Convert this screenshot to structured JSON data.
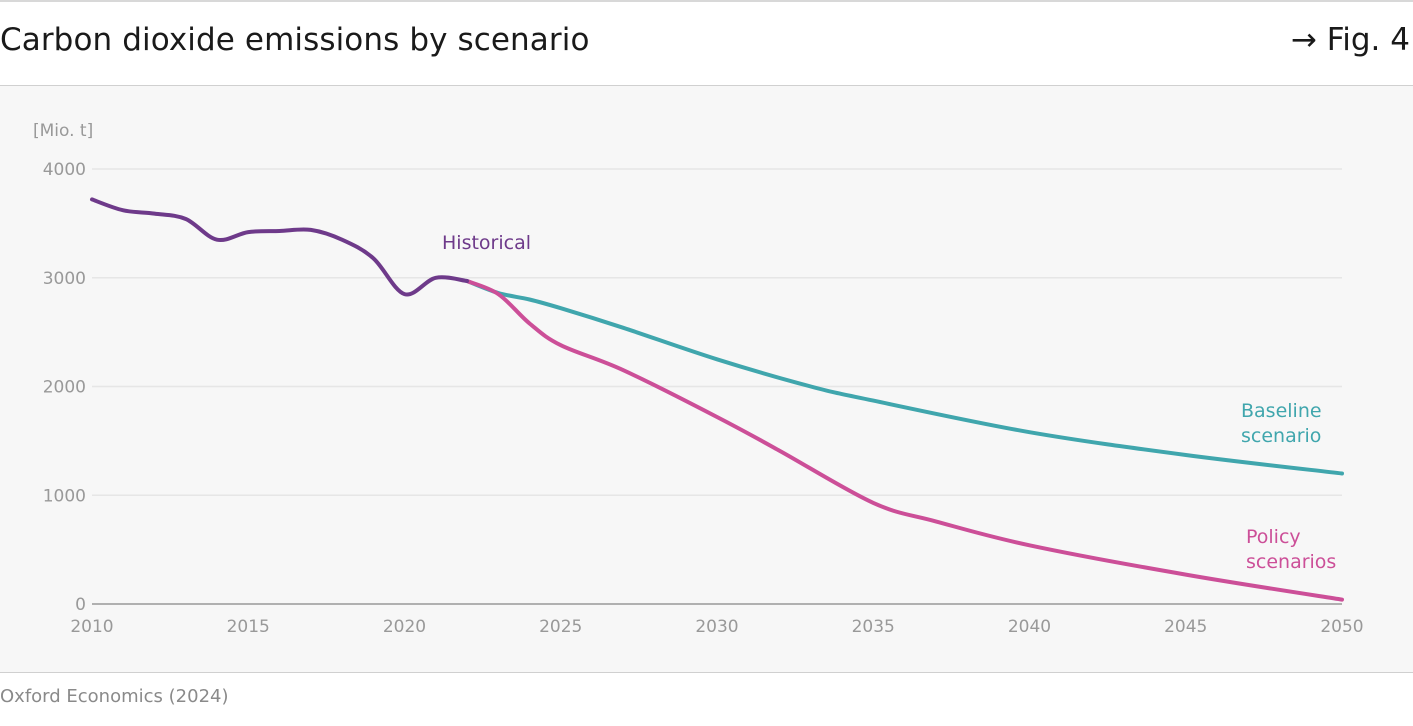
{
  "header": {
    "title": "Carbon dioxide emissions by scenario",
    "fig_ref": "→ Fig. 4"
  },
  "footer": {
    "source": "Oxford Economics (2024)"
  },
  "colors": {
    "historical": "#6e3a8a",
    "baseline": "#40a6ad",
    "policy": "#cc4f98",
    "axis": "#999999",
    "grid": "#e6e6e6",
    "background": "#f7f7f7"
  },
  "chart_data": {
    "type": "line",
    "unit_label": "[Mio. t]",
    "xlim": [
      2010,
      2050
    ],
    "ylim": [
      0,
      4000
    ],
    "x_ticks": [
      2010,
      2015,
      2020,
      2025,
      2030,
      2035,
      2040,
      2045,
      2050
    ],
    "y_ticks": [
      0,
      1000,
      2000,
      3000,
      4000
    ],
    "grid": true,
    "series": [
      {
        "key": "historical",
        "name": "Historical",
        "points": [
          [
            2010,
            3720
          ],
          [
            2011,
            3620
          ],
          [
            2012,
            3590
          ],
          [
            2013,
            3540
          ],
          [
            2014,
            3350
          ],
          [
            2015,
            3420
          ],
          [
            2016,
            3430
          ],
          [
            2017,
            3440
          ],
          [
            2018,
            3350
          ],
          [
            2019,
            3180
          ],
          [
            2020,
            2850
          ],
          [
            2021,
            3000
          ],
          [
            2022,
            2970
          ]
        ]
      },
      {
        "key": "baseline",
        "name": "Baseline scenario",
        "label_lines": [
          "Baseline",
          "scenario"
        ],
        "points": [
          [
            2022,
            2970
          ],
          [
            2023,
            2860
          ],
          [
            2024,
            2800
          ],
          [
            2025,
            2720
          ],
          [
            2027,
            2540
          ],
          [
            2030,
            2250
          ],
          [
            2033,
            2000
          ],
          [
            2035,
            1870
          ],
          [
            2040,
            1580
          ],
          [
            2045,
            1370
          ],
          [
            2050,
            1200
          ]
        ]
      },
      {
        "key": "policy",
        "name": "Policy scenarios",
        "label_lines": [
          "Policy",
          "scenarios"
        ],
        "points": [
          [
            2022,
            2970
          ],
          [
            2023,
            2850
          ],
          [
            2024,
            2580
          ],
          [
            2025,
            2380
          ],
          [
            2027,
            2150
          ],
          [
            2030,
            1720
          ],
          [
            2032,
            1410
          ],
          [
            2035,
            930
          ],
          [
            2037,
            760
          ],
          [
            2040,
            540
          ],
          [
            2045,
            270
          ],
          [
            2050,
            40
          ]
        ]
      }
    ]
  }
}
